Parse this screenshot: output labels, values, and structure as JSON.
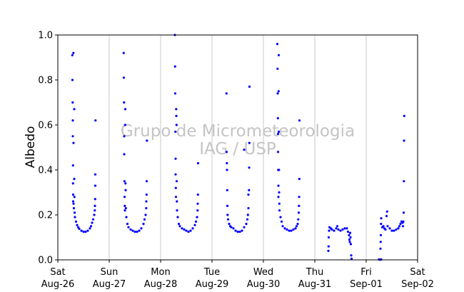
{
  "chart_data": {
    "type": "scatter",
    "title": "",
    "xlabel": "",
    "ylabel": "Albedo",
    "ylim": [
      0.0,
      1.0
    ],
    "yticks": [
      "0.0",
      "0.2",
      "0.4",
      "0.6",
      "0.8",
      "1.0"
    ],
    "xlim": [
      "2017-08-26",
      "2017-09-02"
    ],
    "xticks": [
      {
        "line1": "Sat",
        "line2": "Aug-26"
      },
      {
        "line1": "Sun",
        "line2": "Aug-27"
      },
      {
        "line1": "Mon",
        "line2": "Aug-28"
      },
      {
        "line1": "Tue",
        "line2": "Aug-29"
      },
      {
        "line1": "Wed",
        "line2": "Aug-30"
      },
      {
        "line1": "Thu",
        "line2": "Aug-31"
      },
      {
        "line1": "Fri",
        "line2": "Sep-01"
      },
      {
        "line1": "Sat",
        "line2": "Sep-02"
      }
    ],
    "grid": "vertical at day boundaries",
    "marker_color": "#0000ff",
    "grid_color": "#c8c8c8",
    "watermark": [
      "Grupo de Micrometeorologia",
      "IAG / USP"
    ],
    "series": [
      {
        "points": [
          [
            "Aug-26 06:45",
            0.91
          ],
          [
            "Aug-26 06:50",
            0.8
          ],
          [
            "Aug-26 06:55",
            0.7
          ],
          [
            "Aug-26 07:00",
            0.62
          ],
          [
            "Aug-26 07:00",
            0.55
          ],
          [
            "Aug-26 07:05",
            0.42
          ],
          [
            "Aug-26 07:05",
            0.34
          ],
          [
            "Aug-26 07:10",
            0.29
          ],
          [
            "Aug-26 07:10",
            0.26
          ],
          [
            "Aug-26 07:15",
            0.92
          ],
          [
            "Aug-26 07:20",
            0.52
          ],
          [
            "Aug-26 07:20",
            0.25
          ],
          [
            "Aug-26 07:30",
            0.23
          ],
          [
            "Aug-26 07:40",
            0.67
          ],
          [
            "Aug-26 07:40",
            0.36
          ],
          [
            "Aug-26 07:45",
            0.28
          ],
          [
            "Aug-26 07:50",
            0.21
          ],
          [
            "Aug-26 08:00",
            0.19
          ],
          [
            "Aug-26 08:30",
            0.17
          ],
          [
            "Aug-26 09:00",
            0.155
          ],
          [
            "Aug-26 09:30",
            0.145
          ],
          [
            "Aug-26 10:00",
            0.138
          ],
          [
            "Aug-26 11:00",
            0.13
          ],
          [
            "Aug-26 12:00",
            0.125
          ],
          [
            "Aug-26 13:00",
            0.125
          ],
          [
            "Aug-26 14:00",
            0.13
          ],
          [
            "Aug-26 15:00",
            0.14
          ],
          [
            "Aug-26 15:30",
            0.15
          ],
          [
            "Aug-26 16:00",
            0.165
          ],
          [
            "Aug-26 16:30",
            0.18
          ],
          [
            "Aug-26 17:00",
            0.2
          ],
          [
            "Aug-26 17:15",
            0.22
          ],
          [
            "Aug-26 17:20",
            0.24
          ],
          [
            "Aug-26 17:25",
            0.27
          ],
          [
            "Aug-26 17:30",
            0.33
          ],
          [
            "Aug-26 17:30",
            0.38
          ],
          [
            "Aug-26 17:35",
            0.62
          ],
          [
            "Aug-27 06:45",
            0.92
          ],
          [
            "Aug-27 06:50",
            0.81
          ],
          [
            "Aug-27 06:55",
            0.7
          ],
          [
            "Aug-27 07:00",
            0.55
          ],
          [
            "Aug-27 07:00",
            0.47
          ],
          [
            "Aug-27 07:05",
            0.35
          ],
          [
            "Aug-27 07:10",
            0.28
          ],
          [
            "Aug-27 07:15",
            0.24
          ],
          [
            "Aug-27 07:20",
            0.22
          ],
          [
            "Aug-27 07:25",
            0.6
          ],
          [
            "Aug-27 07:30",
            0.67
          ],
          [
            "Aug-27 07:35",
            0.34
          ],
          [
            "Aug-27 07:40",
            0.31
          ],
          [
            "Aug-27 07:45",
            0.23
          ],
          [
            "Aug-27 08:00",
            0.19
          ],
          [
            "Aug-27 08:30",
            0.16
          ],
          [
            "Aug-27 09:00",
            0.145
          ],
          [
            "Aug-27 10:00",
            0.135
          ],
          [
            "Aug-27 11:00",
            0.13
          ],
          [
            "Aug-27 12:00",
            0.125
          ],
          [
            "Aug-27 13:00",
            0.125
          ],
          [
            "Aug-27 14:00",
            0.13
          ],
          [
            "Aug-27 15:00",
            0.14
          ],
          [
            "Aug-27 16:00",
            0.16
          ],
          [
            "Aug-27 16:30",
            0.18
          ],
          [
            "Aug-27 17:00",
            0.2
          ],
          [
            "Aug-27 17:15",
            0.23
          ],
          [
            "Aug-27 17:20",
            0.26
          ],
          [
            "Aug-27 17:25",
            0.29
          ],
          [
            "Aug-27 17:30",
            0.35
          ],
          [
            "Aug-27 17:35",
            0.53
          ],
          [
            "Aug-28 06:40",
            1.0
          ],
          [
            "Aug-28 06:45",
            0.86
          ],
          [
            "Aug-28 06:50",
            0.74
          ],
          [
            "Aug-28 06:55",
            0.57
          ],
          [
            "Aug-28 07:00",
            0.45
          ],
          [
            "Aug-28 07:00",
            0.38
          ],
          [
            "Aug-28 07:05",
            0.32
          ],
          [
            "Aug-28 07:10",
            0.28
          ],
          [
            "Aug-28 07:15",
            0.67
          ],
          [
            "Aug-28 07:20",
            0.64
          ],
          [
            "Aug-28 07:25",
            0.6
          ],
          [
            "Aug-28 07:30",
            0.35
          ],
          [
            "Aug-28 07:35",
            0.26
          ],
          [
            "Aug-28 07:40",
            0.22
          ],
          [
            "Aug-28 08:00",
            0.19
          ],
          [
            "Aug-28 08:30",
            0.16
          ],
          [
            "Aug-28 09:00",
            0.15
          ],
          [
            "Aug-28 10:00",
            0.14
          ],
          [
            "Aug-28 11:00",
            0.135
          ],
          [
            "Aug-28 12:00",
            0.13
          ],
          [
            "Aug-28 13:00",
            0.125
          ],
          [
            "Aug-28 14:00",
            0.13
          ],
          [
            "Aug-28 15:00",
            0.14
          ],
          [
            "Aug-28 16:00",
            0.155
          ],
          [
            "Aug-28 16:30",
            0.17
          ],
          [
            "Aug-28 17:00",
            0.19
          ],
          [
            "Aug-28 17:15",
            0.22
          ],
          [
            "Aug-28 17:20",
            0.25
          ],
          [
            "Aug-28 17:25",
            0.29
          ],
          [
            "Aug-28 17:30",
            0.43
          ],
          [
            "Aug-29 06:45",
            0.74
          ],
          [
            "Aug-29 06:50",
            0.48
          ],
          [
            "Aug-29 06:55",
            0.43
          ],
          [
            "Aug-29 07:00",
            0.4
          ],
          [
            "Aug-29 07:05",
            0.31
          ],
          [
            "Aug-29 07:10",
            0.24
          ],
          [
            "Aug-29 07:15",
            0.2
          ],
          [
            "Aug-29 07:30",
            0.18
          ],
          [
            "Aug-29 08:00",
            0.16
          ],
          [
            "Aug-29 08:30",
            0.15
          ],
          [
            "Aug-29 09:00",
            0.145
          ],
          [
            "Aug-29 10:00",
            0.14
          ],
          [
            "Aug-29 11:00",
            0.13
          ],
          [
            "Aug-29 12:00",
            0.125
          ],
          [
            "Aug-29 13:00",
            0.125
          ],
          [
            "Aug-29 14:00",
            0.13
          ],
          [
            "Aug-29 15:00",
            0.145
          ],
          [
            "Aug-29 16:00",
            0.16
          ],
          [
            "Aug-29 16:30",
            0.18
          ],
          [
            "Aug-29 16:45",
            0.2
          ],
          [
            "Aug-29 17:00",
            0.23
          ],
          [
            "Aug-29 17:00",
            0.29
          ],
          [
            "Aug-29 15:00",
            0.49
          ],
          [
            "Aug-29 17:15",
            0.31
          ],
          [
            "Aug-29 17:20",
            0.41
          ],
          [
            "Aug-29 17:25",
            0.52
          ],
          [
            "Aug-29 17:30",
            0.77
          ],
          [
            "Aug-30 06:30",
            0.96
          ],
          [
            "Aug-30 06:35",
            0.85
          ],
          [
            "Aug-30 06:40",
            0.74
          ],
          [
            "Aug-30 06:45",
            0.63
          ],
          [
            "Aug-30 06:50",
            0.56
          ],
          [
            "Aug-30 06:50",
            0.48
          ],
          [
            "Aug-30 06:55",
            0.4
          ],
          [
            "Aug-30 07:00",
            0.33
          ],
          [
            "Aug-30 07:00",
            0.28
          ],
          [
            "Aug-30 07:05",
            0.75
          ],
          [
            "Aug-30 07:10",
            0.91
          ],
          [
            "Aug-30 07:10",
            0.57
          ],
          [
            "Aug-30 07:15",
            0.4
          ],
          [
            "Aug-30 07:20",
            0.3
          ],
          [
            "Aug-30 07:25",
            0.25
          ],
          [
            "Aug-30 07:30",
            0.22
          ],
          [
            "Aug-30 08:00",
            0.19
          ],
          [
            "Aug-30 08:30",
            0.17
          ],
          [
            "Aug-30 09:00",
            0.15
          ],
          [
            "Aug-30 10:00",
            0.14
          ],
          [
            "Aug-30 11:00",
            0.135
          ],
          [
            "Aug-30 12:00",
            0.13
          ],
          [
            "Aug-30 13:00",
            0.13
          ],
          [
            "Aug-30 14:00",
            0.135
          ],
          [
            "Aug-30 15:00",
            0.14
          ],
          [
            "Aug-30 15:30",
            0.15
          ],
          [
            "Aug-30 16:00",
            0.16
          ],
          [
            "Aug-30 16:15",
            0.18
          ],
          [
            "Aug-30 16:30",
            0.21
          ],
          [
            "Aug-30 16:35",
            0.24
          ],
          [
            "Aug-30 16:40",
            0.28
          ],
          [
            "Aug-30 16:45",
            0.36
          ],
          [
            "Aug-30 16:50",
            0.62
          ],
          [
            "Aug-31 06:20",
            0.04
          ],
          [
            "Aug-31 06:25",
            0.06
          ],
          [
            "Aug-31 06:30",
            0.1
          ],
          [
            "Aug-31 06:40",
            0.13
          ],
          [
            "Aug-31 06:50",
            0.145
          ],
          [
            "Aug-31 07:30",
            0.14
          ],
          [
            "Aug-31 08:00",
            0.135
          ],
          [
            "Aug-31 09:00",
            0.13
          ],
          [
            "Aug-31 10:00",
            0.14
          ],
          [
            "Aug-31 10:30",
            0.15
          ],
          [
            "Aug-31 11:00",
            0.135
          ],
          [
            "Aug-31 12:00",
            0.13
          ],
          [
            "Aug-31 13:00",
            0.135
          ],
          [
            "Aug-31 14:00",
            0.14
          ],
          [
            "Aug-31 15:00",
            0.14
          ],
          [
            "Aug-31 15:30",
            0.125
          ],
          [
            "Aug-31 16:00",
            0.11
          ],
          [
            "Aug-31 16:10",
            0.09
          ],
          [
            "Aug-31 16:20",
            0.08
          ],
          [
            "Aug-31 16:30",
            0.12
          ],
          [
            "Aug-31 16:40",
            0.1
          ],
          [
            "Aug-31 16:50",
            0.07
          ],
          [
            "Aug-31 17:00",
            0.02
          ],
          [
            "Aug-31 17:10",
            0.005
          ],
          [
            "Sep-01 06:00",
            0.002
          ],
          [
            "Sep-01 06:30",
            0.001
          ],
          [
            "Sep-01 07:00",
            0.002
          ],
          [
            "Sep-01 06:40",
            0.05
          ],
          [
            "Sep-01 06:45",
            0.08
          ],
          [
            "Sep-01 06:50",
            0.11
          ],
          [
            "Sep-01 06:55",
            0.16
          ],
          [
            "Sep-01 07:00",
            0.185
          ],
          [
            "Sep-01 07:30",
            0.145
          ],
          [
            "Sep-01 08:00",
            0.15
          ],
          [
            "Sep-01 08:30",
            0.14
          ],
          [
            "Sep-01 09:00",
            0.135
          ],
          [
            "Sep-01 09:30",
            0.195
          ],
          [
            "Sep-01 09:45",
            0.215
          ],
          [
            "Sep-01 10:00",
            0.15
          ],
          [
            "Sep-01 11:00",
            0.14
          ],
          [
            "Sep-01 12:00",
            0.13
          ],
          [
            "Sep-01 13:00",
            0.13
          ],
          [
            "Sep-01 14:00",
            0.135
          ],
          [
            "Sep-01 15:00",
            0.14
          ],
          [
            "Sep-01 15:30",
            0.15
          ],
          [
            "Sep-01 16:00",
            0.16
          ],
          [
            "Sep-01 16:30",
            0.17
          ],
          [
            "Sep-01 17:00",
            0.165
          ],
          [
            "Sep-01 17:10",
            0.15
          ],
          [
            "Sep-01 17:20",
            0.17
          ],
          [
            "Sep-01 17:30",
            0.21
          ],
          [
            "Sep-01 17:35",
            0.35
          ],
          [
            "Sep-01 17:40",
            0.53
          ],
          [
            "Sep-01 17:45",
            0.64
          ]
        ]
      }
    ]
  }
}
